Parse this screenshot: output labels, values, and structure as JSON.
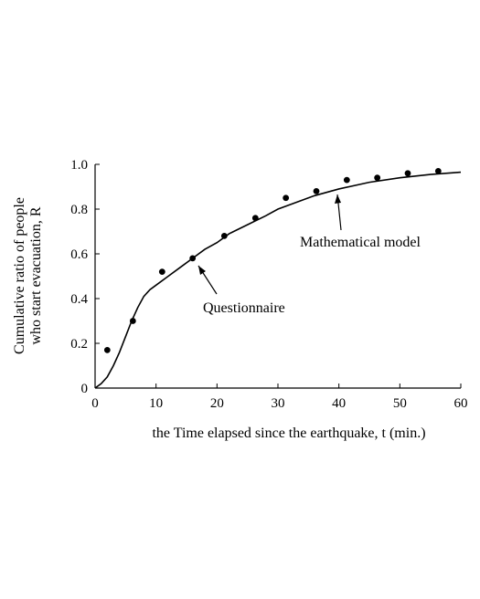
{
  "chart_data": {
    "type": "scatter",
    "xlabel": "the Time elapsed since the earthquake, t (min.)",
    "ylabel_line1": "Cumulative ratio of people",
    "ylabel_line2": "who start evacuation, R",
    "xlim": [
      0,
      60
    ],
    "ylim": [
      0,
      1.0
    ],
    "x_ticks": [
      0,
      10,
      20,
      30,
      40,
      50,
      60
    ],
    "x_tick_labels": [
      "0",
      "10",
      "20",
      "30",
      "40",
      "50",
      "60"
    ],
    "y_ticks": [
      0,
      0.2,
      0.4,
      0.6,
      0.8,
      1.0
    ],
    "y_tick_labels": [
      "0",
      "0.2",
      "0.4",
      "0.6",
      "0.8",
      "1.0"
    ],
    "grid": false,
    "series": [
      {
        "name": "Questionnaire",
        "kind": "points",
        "x": [
          2,
          6.2,
          11,
          16,
          21.2,
          26.3,
          31.3,
          36.3,
          41.3,
          46.3,
          51.3,
          56.3
        ],
        "y": [
          0.17,
          0.3,
          0.52,
          0.58,
          0.68,
          0.76,
          0.85,
          0.88,
          0.93,
          0.94,
          0.96,
          0.97
        ]
      },
      {
        "name": "Mathematical model",
        "kind": "line",
        "x": [
          0,
          1,
          2,
          3,
          4,
          5,
          6,
          7,
          8,
          9,
          10,
          12,
          14,
          16,
          18,
          20,
          22,
          25,
          28,
          30,
          33,
          36,
          40,
          45,
          50,
          55,
          60
        ],
        "y": [
          0,
          0.02,
          0.05,
          0.1,
          0.16,
          0.23,
          0.3,
          0.36,
          0.41,
          0.44,
          0.46,
          0.5,
          0.54,
          0.58,
          0.62,
          0.65,
          0.69,
          0.73,
          0.77,
          0.8,
          0.83,
          0.86,
          0.89,
          0.92,
          0.94,
          0.955,
          0.965
        ]
      }
    ],
    "annotations": [
      {
        "text": "Questionnaire",
        "target_series": "Questionnaire"
      },
      {
        "text": "Mathematical model",
        "target_series": "Mathematical model"
      }
    ]
  }
}
